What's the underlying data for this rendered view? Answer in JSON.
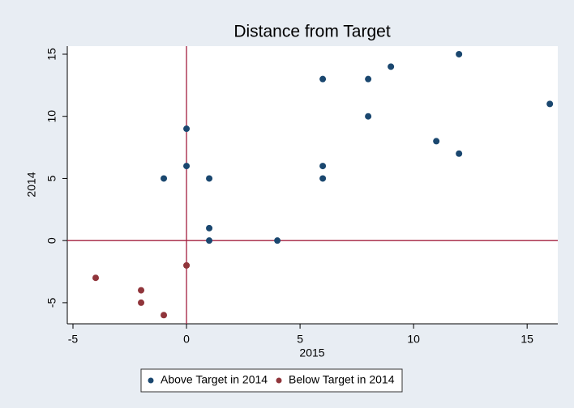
{
  "chart_data": {
    "type": "scatter",
    "title": "Distance from Target",
    "x_label": "2015",
    "y_label": "2014",
    "series": [
      {
        "name": "Above Target in 2014",
        "color": "#1a476f",
        "x": [
          -1,
          0,
          0,
          1,
          1,
          1,
          4,
          6,
          6,
          6,
          8,
          8,
          9,
          11,
          12,
          12,
          16
        ],
        "y": [
          5,
          9,
          6,
          5,
          1,
          0,
          0,
          13,
          6,
          5,
          13,
          10,
          14,
          8,
          15,
          7,
          11
        ]
      },
      {
        "name": "Below Target in 2014",
        "color": "#90353b",
        "x": [
          -4,
          -2,
          -2,
          -1,
          0
        ],
        "y": [
          -3,
          -4,
          -5,
          -6,
          -2
        ]
      }
    ],
    "xlim": [
      -5.25,
      16.35
    ],
    "xticks": [
      -5,
      0,
      5,
      10,
      15
    ],
    "ylim": [
      -6.7,
      15.65
    ],
    "yticks": [
      -5,
      0,
      5,
      10,
      15
    ],
    "reference_x": 0,
    "reference_y": 0,
    "reference_color": "#a3203f",
    "legend": "bottom"
  }
}
